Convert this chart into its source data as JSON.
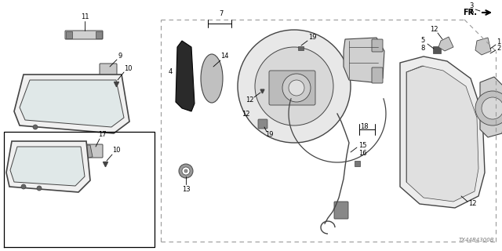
{
  "bg_color": "#ffffff",
  "lc": "#000000",
  "gray": "#444444",
  "lgray": "#888888",
  "dashed": "#999999",
  "figure_width": 6.4,
  "figure_height": 3.2,
  "watermark": "TX44B4300B",
  "fs": 6.0
}
